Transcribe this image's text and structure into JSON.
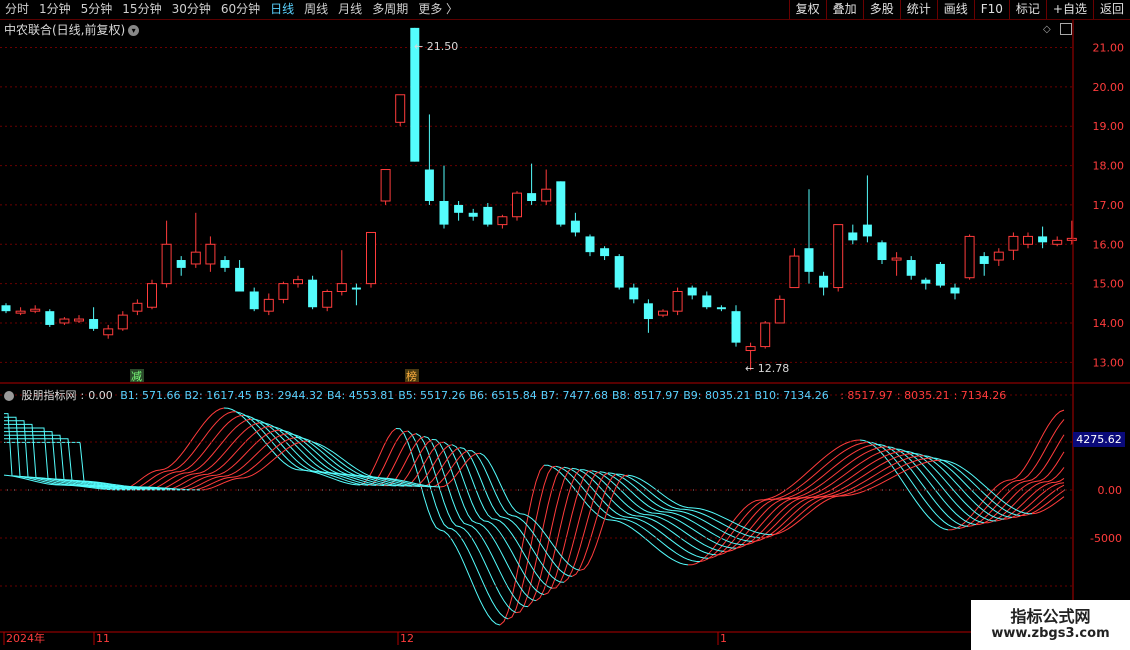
{
  "toolbar": {
    "periods": [
      "分时",
      "1分钟",
      "5分钟",
      "15分钟",
      "30分钟",
      "60分钟",
      "日线",
      "周线",
      "月线",
      "多周期",
      "更多 〉"
    ],
    "active_index": 6,
    "buttons": [
      "复权",
      "叠加",
      "多股",
      "统计",
      "画线",
      "F10",
      "标记",
      "+自选",
      "返回"
    ]
  },
  "main_chart": {
    "title": "中农联合(日线,前复权)",
    "y_ticks": [
      "21.00",
      "20.00",
      "19.00",
      "18.00",
      "17.00",
      "16.00",
      "15.00",
      "14.00",
      "13.00"
    ],
    "high_label": "21.50",
    "low_label": "12.78",
    "badges": [
      "减",
      "榜"
    ]
  },
  "sub_chart": {
    "indicator_name": "股朋指标网",
    "value": "0.00",
    "params": [
      {
        "label": "B1:",
        "value": "571.66"
      },
      {
        "label": "B2:",
        "value": "1617.45"
      },
      {
        "label": "B3:",
        "value": "2944.32"
      },
      {
        "label": "B4:",
        "value": "4553.81"
      },
      {
        "label": "B5:",
        "value": "5517.26"
      },
      {
        "label": "B6:",
        "value": "6515.84"
      },
      {
        "label": "B7:",
        "value": "7477.68"
      },
      {
        "label": "B8:",
        "value": "8517.97"
      },
      {
        "label": "B9:",
        "value": "8035.21"
      },
      {
        "label": "B10:",
        "value": "7134.26"
      }
    ],
    "red_values": [
      ": 8517.97",
      ": 8035.21",
      ": 7134.26"
    ],
    "y_ticks": [
      "0.00",
      "-5000"
    ],
    "current_tag": "4275.62"
  },
  "x_axis": {
    "labels": [
      "2024年",
      "11",
      "12",
      "1"
    ]
  },
  "watermark": {
    "line1": "指标公式网",
    "line2": "www.zbgs3.com"
  },
  "colors": {
    "up": "#ff3c3c",
    "down": "#54fcfc",
    "grid": "#7a0000",
    "axis": "#b00000",
    "accent": "#5ad2ff"
  },
  "chart_data": {
    "type": "candlestick",
    "y_range": [
      12.5,
      21.7
    ],
    "candles": [
      [
        14.45,
        14.3,
        14.5,
        14.25
      ],
      [
        14.25,
        14.3,
        14.4,
        14.2
      ],
      [
        14.3,
        14.35,
        14.45,
        14.25
      ],
      [
        14.3,
        13.95,
        14.35,
        13.9
      ],
      [
        14.0,
        14.1,
        14.15,
        13.95
      ],
      [
        14.05,
        14.1,
        14.2,
        14.0
      ],
      [
        14.1,
        13.85,
        14.4,
        13.8
      ],
      [
        13.7,
        13.85,
        13.95,
        13.6
      ],
      [
        13.85,
        14.2,
        14.3,
        13.8
      ],
      [
        14.3,
        14.5,
        14.6,
        14.2
      ],
      [
        14.4,
        15.0,
        15.1,
        14.35
      ],
      [
        15.0,
        16.0,
        16.6,
        14.9
      ],
      [
        15.6,
        15.4,
        15.7,
        15.2
      ],
      [
        15.5,
        15.8,
        16.8,
        15.4
      ],
      [
        15.5,
        16.0,
        16.2,
        15.3
      ],
      [
        15.6,
        15.4,
        15.7,
        15.3
      ],
      [
        15.4,
        14.8,
        15.6,
        14.8
      ],
      [
        14.8,
        14.35,
        14.9,
        14.3
      ],
      [
        14.3,
        14.6,
        14.75,
        14.2
      ],
      [
        14.6,
        15.0,
        15.05,
        14.5
      ],
      [
        15.0,
        15.1,
        15.2,
        14.9
      ],
      [
        15.1,
        14.4,
        15.2,
        14.35
      ],
      [
        14.4,
        14.8,
        14.85,
        14.3
      ],
      [
        14.8,
        15.0,
        15.85,
        14.7
      ],
      [
        14.9,
        14.85,
        15.0,
        14.45
      ],
      [
        15.0,
        16.3,
        16.3,
        14.9
      ],
      [
        17.1,
        17.9,
        17.9,
        17.0
      ],
      [
        19.1,
        19.8,
        19.8,
        19.0
      ],
      [
        21.5,
        18.1,
        21.5,
        18.1
      ],
      [
        17.9,
        17.1,
        19.3,
        17.0
      ],
      [
        17.1,
        16.5,
        18.0,
        16.4
      ],
      [
        17.0,
        16.8,
        17.1,
        16.6
      ],
      [
        16.8,
        16.7,
        16.9,
        16.6
      ],
      [
        16.95,
        16.5,
        17.05,
        16.45
      ],
      [
        16.5,
        16.7,
        16.75,
        16.4
      ],
      [
        16.7,
        17.3,
        17.35,
        16.6
      ],
      [
        17.3,
        17.1,
        18.05,
        17.0
      ],
      [
        17.1,
        17.4,
        17.9,
        17.0
      ],
      [
        17.6,
        16.5,
        17.6,
        16.45
      ],
      [
        16.6,
        16.3,
        16.8,
        16.2
      ],
      [
        16.2,
        15.8,
        16.25,
        15.7
      ],
      [
        15.9,
        15.7,
        15.95,
        15.6
      ],
      [
        15.7,
        14.9,
        15.75,
        14.85
      ],
      [
        14.9,
        14.6,
        15.0,
        14.5
      ],
      [
        14.5,
        14.1,
        14.6,
        13.75
      ],
      [
        14.2,
        14.3,
        14.35,
        14.15
      ],
      [
        14.3,
        14.8,
        14.9,
        14.2
      ],
      [
        14.9,
        14.7,
        14.95,
        14.6
      ],
      [
        14.7,
        14.4,
        14.8,
        14.35
      ],
      [
        14.4,
        14.35,
        14.45,
        14.3
      ],
      [
        14.3,
        13.5,
        14.45,
        13.4
      ],
      [
        13.3,
        13.4,
        13.5,
        12.8
      ],
      [
        13.4,
        14.0,
        14.05,
        13.35
      ],
      [
        14.0,
        14.6,
        14.7,
        14.0
      ],
      [
        14.9,
        15.7,
        15.9,
        14.95
      ],
      [
        15.9,
        15.3,
        17.4,
        15.0
      ],
      [
        15.2,
        14.9,
        15.3,
        14.7
      ],
      [
        14.9,
        16.5,
        16.5,
        14.8
      ],
      [
        16.3,
        16.1,
        16.5,
        16.0
      ],
      [
        16.5,
        16.2,
        17.75,
        16.05
      ],
      [
        16.05,
        15.6,
        16.1,
        15.5
      ],
      [
        15.6,
        15.65,
        15.8,
        15.2
      ],
      [
        15.6,
        15.2,
        15.7,
        15.1
      ],
      [
        15.1,
        15.0,
        15.15,
        14.85
      ],
      [
        15.5,
        14.95,
        15.55,
        14.9
      ],
      [
        14.9,
        14.75,
        15.0,
        14.6
      ],
      [
        15.15,
        16.2,
        16.25,
        15.1
      ],
      [
        15.7,
        15.5,
        15.8,
        15.2
      ],
      [
        15.6,
        15.8,
        15.9,
        15.45
      ],
      [
        15.85,
        16.2,
        16.3,
        15.6
      ],
      [
        16.0,
        16.2,
        16.3,
        15.9
      ],
      [
        16.2,
        16.05,
        16.45,
        15.9
      ],
      [
        16.0,
        16.1,
        16.2,
        15.95
      ],
      [
        16.1,
        16.15,
        16.6,
        16.0
      ]
    ]
  }
}
